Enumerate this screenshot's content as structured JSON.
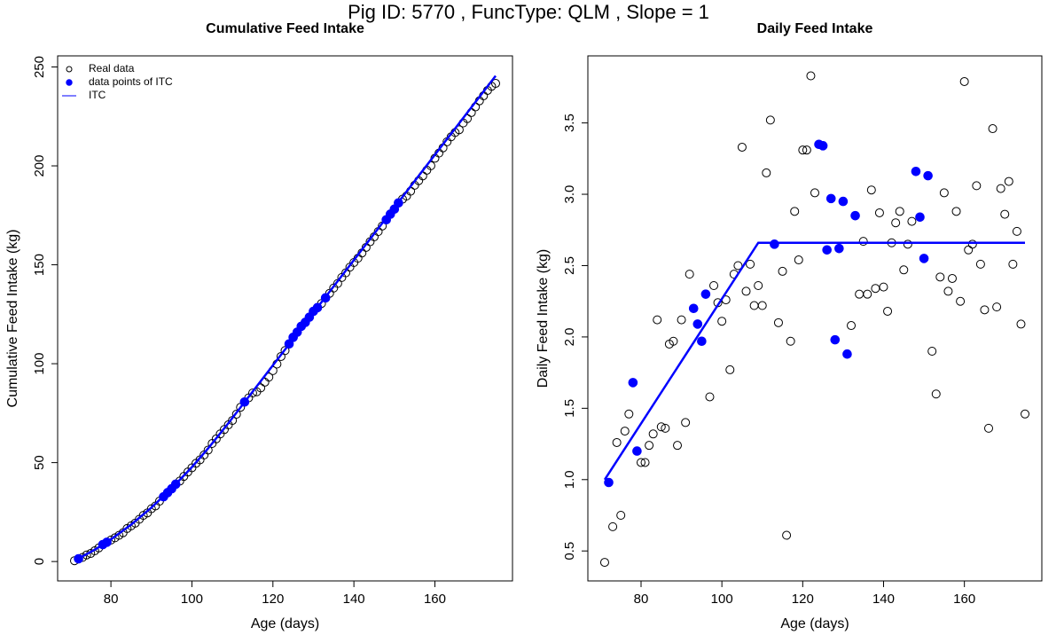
{
  "title": "Pig ID: 5770 , FuncType: QLM , Slope = 1",
  "chart_data": [
    {
      "type": "scatter",
      "title": "Cumulative Feed Intake",
      "x_label": "Age (days)",
      "y_label": "Cumulative Feed Intake (kg)",
      "xlim": [
        66.84,
        179.16
      ],
      "ylim": [
        -9.8,
        255.6
      ],
      "xticks": [
        80,
        100,
        120,
        140,
        160
      ],
      "yticks": [
        0,
        50,
        100,
        150,
        200,
        250
      ],
      "legend": "topleft",
      "series": [
        {
          "name": "Real data",
          "color": "#000000",
          "marker": "open",
          "x": [
            71,
            72,
            73,
            74,
            75,
            76,
            77,
            78,
            79,
            80,
            81,
            82,
            83,
            84,
            85,
            86,
            87,
            88,
            89,
            90,
            91,
            92,
            93,
            94,
            95,
            96,
            97,
            98,
            99,
            100,
            101,
            102,
            103,
            104,
            105,
            106,
            107,
            108,
            109,
            110,
            111,
            112,
            113,
            114,
            115,
            116,
            117,
            118,
            119,
            120,
            121,
            122,
            123,
            124,
            125,
            126,
            127,
            128,
            129,
            130,
            131,
            132,
            133,
            134,
            135,
            136,
            137,
            138,
            139,
            140,
            141,
            142,
            143,
            144,
            145,
            146,
            147,
            148,
            149,
            150,
            151,
            152,
            153,
            154,
            155,
            156,
            157,
            158,
            159,
            160,
            161,
            162,
            163,
            164,
            165,
            166,
            167,
            168,
            169,
            170,
            171,
            172,
            173,
            174,
            175
          ],
          "values": [
            0.42,
            1.4,
            2.07,
            3.33,
            4.08,
            5.42,
            6.88,
            8.56,
            9.76,
            10.88,
            12.0,
            13.24,
            14.56,
            16.68,
            18.05,
            19.41,
            21.36,
            23.33,
            24.57,
            26.69,
            28.09,
            30.53,
            32.73,
            34.82,
            36.79,
            39.09,
            40.67,
            43.03,
            45.27,
            47.38,
            49.64,
            51.41,
            53.85,
            56.35,
            59.68,
            62.0,
            64.51,
            66.73,
            69.09,
            71.31,
            74.46,
            77.98,
            80.63,
            82.73,
            85.19,
            85.8,
            87.77,
            90.65,
            93.19,
            96.5,
            99.81,
            103.64,
            106.65,
            110.0,
            113.34,
            115.95,
            118.92,
            120.9,
            123.52,
            126.47,
            128.35,
            130.43,
            133.28,
            135.58,
            138.25,
            140.55,
            143.58,
            145.92,
            148.79,
            151.14,
            153.32,
            155.98,
            158.78,
            161.66,
            164.13,
            166.78,
            169.59,
            172.75,
            175.59,
            178.14,
            181.27,
            183.17,
            184.77,
            187.19,
            190.2,
            192.52,
            194.93,
            197.81,
            200.06,
            203.85,
            206.46,
            209.11,
            212.17,
            214.68,
            216.87,
            218.23,
            221.69,
            223.9,
            226.94,
            229.8,
            232.89,
            235.4,
            238.14,
            240.23,
            241.69
          ]
        },
        {
          "name": "data points of ITC",
          "color": "#0000ff",
          "marker": "filled",
          "x": [
            72,
            78,
            79,
            93,
            94,
            95,
            96,
            113,
            124,
            125,
            126,
            127,
            128,
            129,
            130,
            131,
            133,
            148,
            149,
            150,
            151
          ],
          "values": [
            1.4,
            8.56,
            9.76,
            32.73,
            34.82,
            36.79,
            39.09,
            80.63,
            110.0,
            113.34,
            115.95,
            118.92,
            120.9,
            123.52,
            126.47,
            128.35,
            133.28,
            172.75,
            175.59,
            178.14,
            181.27
          ]
        },
        {
          "name": "ITC",
          "color": "#0000ff",
          "marker": "line",
          "x": [
            71,
            76,
            80,
            85,
            90,
            95,
            100,
            104,
            109,
            120,
            175
          ],
          "values": [
            0.4,
            5.95,
            11.17,
            18.68,
            27.29,
            36.99,
            47.78,
            57.19,
            69.94,
            99.2,
            245.5
          ]
        }
      ]
    },
    {
      "type": "scatter",
      "title": "Daily Feed Intake",
      "x_label": "Age (days)",
      "y_label": "Daily Feed Intake (kg)",
      "xlim": [
        66.84,
        179.16
      ],
      "ylim": [
        0.29,
        3.97
      ],
      "xticks": [
        80,
        100,
        120,
        140,
        160
      ],
      "yticks": [
        0.5,
        {
          "value": 1,
          "label": "1.0"
        },
        1.5,
        {
          "value": 2,
          "label": "2.0"
        },
        2.5,
        {
          "value": 3,
          "label": "3.0"
        },
        3.5
      ],
      "series": [
        {
          "color": "#000000",
          "marker": "open",
          "x": [
            71,
            72,
            73,
            74,
            75,
            76,
            77,
            78,
            79,
            80,
            81,
            82,
            83,
            84,
            85,
            86,
            87,
            88,
            89,
            90,
            91,
            92,
            93,
            94,
            95,
            96,
            97,
            98,
            99,
            100,
            101,
            102,
            103,
            104,
            105,
            106,
            107,
            108,
            109,
            110,
            111,
            112,
            113,
            114,
            115,
            116,
            117,
            118,
            119,
            120,
            121,
            122,
            123,
            124,
            125,
            126,
            127,
            128,
            129,
            130,
            131,
            132,
            133,
            134,
            135,
            136,
            137,
            138,
            139,
            140,
            141,
            142,
            143,
            144,
            145,
            146,
            147,
            148,
            149,
            150,
            151,
            152,
            153,
            154,
            155,
            156,
            157,
            158,
            159,
            160,
            161,
            162,
            163,
            164,
            165,
            166,
            167,
            168,
            169,
            170,
            171,
            172,
            173,
            174,
            175
          ],
          "values": [
            0.42,
            0.98,
            0.67,
            1.26,
            0.75,
            1.34,
            1.46,
            1.68,
            1.2,
            1.12,
            1.12,
            1.24,
            1.32,
            2.12,
            1.37,
            1.36,
            1.95,
            1.97,
            1.24,
            2.12,
            1.4,
            2.44,
            2.2,
            2.09,
            1.97,
            2.3,
            1.58,
            2.36,
            2.24,
            2.11,
            2.26,
            1.77,
            2.44,
            2.5,
            3.33,
            2.32,
            2.51,
            2.22,
            2.36,
            2.22,
            3.15,
            3.52,
            2.65,
            2.1,
            2.46,
            0.61,
            1.97,
            2.88,
            2.54,
            3.31,
            3.31,
            3.83,
            3.01,
            3.35,
            3.34,
            2.61,
            2.97,
            1.98,
            2.62,
            2.95,
            1.88,
            2.08,
            2.85,
            2.3,
            2.67,
            2.3,
            3.03,
            2.34,
            2.87,
            2.35,
            2.18,
            2.66,
            2.8,
            2.88,
            2.47,
            2.65,
            2.81,
            3.16,
            2.84,
            2.55,
            3.13,
            1.9,
            1.6,
            2.42,
            3.01,
            2.32,
            2.41,
            2.88,
            2.25,
            3.79,
            2.61,
            2.65,
            3.06,
            2.51,
            2.19,
            1.36,
            3.46,
            2.21,
            3.04,
            2.86,
            3.09,
            2.51,
            2.74,
            2.09,
            1.46
          ]
        },
        {
          "color": "#0000ff",
          "marker": "filled",
          "x": [
            72,
            78,
            79,
            93,
            94,
            95,
            96,
            113,
            124,
            125,
            126,
            127,
            128,
            129,
            130,
            131,
            133,
            148,
            149,
            150,
            151
          ],
          "values": [
            0.98,
            1.68,
            1.2,
            2.2,
            2.09,
            1.97,
            2.3,
            2.65,
            3.35,
            3.34,
            2.61,
            2.97,
            1.98,
            2.62,
            2.95,
            1.88,
            2.85,
            3.16,
            2.84,
            2.55,
            3.13
          ]
        },
        {
          "color": "#0000ff",
          "marker": "line",
          "x": [
            71,
            109,
            175
          ],
          "values": [
            1.0,
            2.66,
            2.66
          ]
        }
      ]
    }
  ]
}
